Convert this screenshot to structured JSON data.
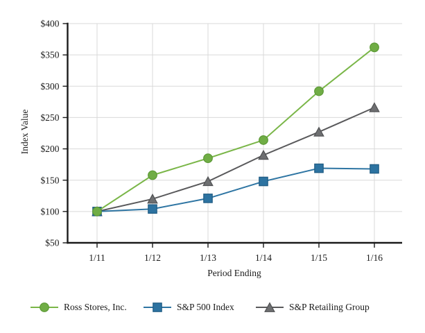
{
  "chart_data": {
    "type": "line",
    "title": "",
    "xlabel": "Period Ending",
    "ylabel": "Index Value",
    "x_categories": [
      "1/11",
      "1/12",
      "1/13",
      "1/14",
      "1/15",
      "1/16"
    ],
    "ylim": [
      50,
      400
    ],
    "grid": true,
    "legend_position": "bottom",
    "y_ticks": [
      {
        "label": "$400",
        "value": 400
      },
      {
        "label": "$350",
        "value": 350
      },
      {
        "label": "$300",
        "value": 300
      },
      {
        "label": "$250",
        "value": 250
      },
      {
        "label": "$200",
        "value": 200
      },
      {
        "label": "$150",
        "value": 150
      },
      {
        "label": "$100",
        "value": 100
      },
      {
        "label": "$50",
        "value": 50
      }
    ],
    "series": [
      {
        "name": "Ross Stores, Inc.",
        "marker": "circle",
        "color": "#7ab648",
        "marker_fill": "#70ad45",
        "marker_stroke": "#5c9936",
        "values": [
          100,
          158,
          185,
          214,
          292,
          362
        ]
      },
      {
        "name": "S&P 500 Index",
        "marker": "square",
        "color": "#2e75a3",
        "marker_fill": "#2d73a1",
        "marker_stroke": "#1f5b83",
        "values": [
          100,
          104,
          121,
          148,
          169,
          168
        ]
      },
      {
        "name": "S&P Retailing Group",
        "marker": "triangle",
        "color": "#59595b",
        "marker_fill": "#6e6f71",
        "marker_stroke": "#505153",
        "values": [
          100,
          120,
          148,
          190,
          227,
          266
        ]
      }
    ],
    "colors": {
      "axis": "#1a1a1a",
      "grid": "#d9d9d9",
      "text": "#1a1a1a",
      "background": "#ffffff"
    }
  }
}
